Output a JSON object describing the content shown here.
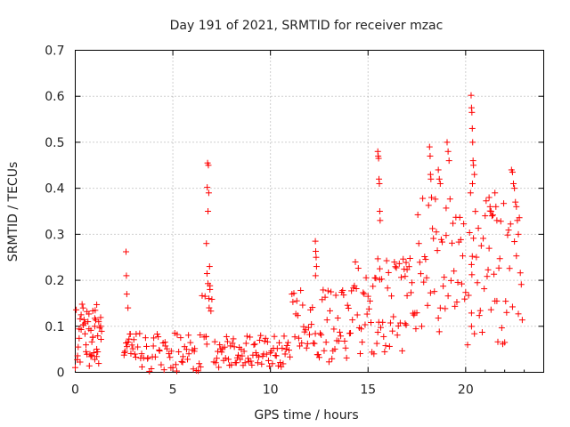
{
  "chart_data": {
    "type": "scatter",
    "title": "Day 191 of 2021, SRMTID for receiver mzac",
    "xlabel": "GPS time / hours",
    "ylabel": "SRMTID / TECUs",
    "xlim": [
      0,
      24
    ],
    "ylim": [
      0,
      0.7
    ],
    "xticks": [
      {
        "value": 0,
        "label": "0"
      },
      {
        "value": 5,
        "label": "5"
      },
      {
        "value": 10,
        "label": "10"
      },
      {
        "value": 15,
        "label": "15"
      },
      {
        "value": 20,
        "label": "20"
      }
    ],
    "yticks": [
      {
        "value": 0,
        "label": "0"
      },
      {
        "value": 0.1,
        "label": "0.1"
      },
      {
        "value": 0.2,
        "label": "0.2"
      },
      {
        "value": 0.3,
        "label": "0.3"
      },
      {
        "value": 0.4,
        "label": "0.4"
      },
      {
        "value": 0.5,
        "label": "0.5"
      },
      {
        "value": 0.6,
        "label": "0.6"
      },
      {
        "value": 0.7,
        "label": "0.7"
      }
    ],
    "grid": true,
    "marker": "+",
    "series": [
      {
        "name": "SRMTID",
        "color": "#ff0000",
        "x": [
          0.0,
          0.1,
          0.15,
          0.2,
          0.25,
          0.3,
          0.35,
          0.4,
          0.45,
          0.5,
          0.55,
          0.6,
          0.65,
          0.7,
          0.75,
          0.8,
          0.85,
          0.9,
          0.95,
          1.0,
          1.05,
          1.1,
          1.15,
          1.2,
          1.25,
          1.3,
          1.35,
          0.05,
          0.2,
          0.4,
          0.6,
          0.8,
          1.0,
          1.2,
          0.3,
          0.5,
          0.7,
          0.9,
          1.1,
          1.3,
          0.12,
          0.42,
          0.72,
          1.02,
          1.32,
          0.9,
          1.0,
          1.1,
          0.25,
          0.55,
          0.85,
          1.15,
          2.5,
          2.55,
          2.6,
          2.65,
          2.7,
          2.75,
          2.8,
          2.85,
          2.9,
          2.95,
          3.0,
          3.1,
          3.2,
          3.3,
          3.4,
          3.5,
          3.6,
          3.7,
          3.8,
          3.9,
          4.0,
          4.1,
          4.2,
          4.3,
          4.4,
          4.5,
          4.6,
          4.7,
          4.8,
          4.9,
          5.0,
          5.1,
          5.2,
          5.3,
          5.4,
          5.5,
          5.6,
          5.7,
          5.8,
          5.9,
          6.0,
          6.1,
          6.2,
          6.3,
          6.4,
          6.5,
          2.6,
          2.62,
          2.64,
          2.7,
          3.05,
          3.35,
          3.65,
          3.95,
          4.25,
          4.55,
          4.85,
          5.15,
          5.45,
          5.75,
          6.05,
          6.35,
          2.52,
          2.82,
          3.12,
          3.42,
          3.72,
          4.02,
          4.32,
          4.62,
          4.92,
          5.22,
          5.52,
          5.82,
          6.12,
          6.42,
          6.6,
          6.65,
          6.7,
          6.75,
          6.8,
          6.85,
          6.9,
          6.95,
          7.0,
          6.78,
          6.82,
          6.76,
          6.84,
          6.8,
          6.72,
          6.88,
          6.7,
          6.9,
          6.74,
          6.86,
          7.1,
          7.2,
          7.3,
          7.4,
          7.5,
          7.6,
          7.7,
          7.8,
          7.9,
          8.0,
          8.1,
          8.2,
          8.3,
          8.4,
          8.5,
          8.6,
          8.7,
          8.8,
          8.9,
          9.0,
          9.1,
          9.2,
          9.3,
          9.4,
          9.5,
          9.6,
          9.7,
          9.8,
          9.9,
          10.0,
          10.1,
          10.2,
          10.3,
          10.4,
          10.5,
          10.6,
          10.7,
          10.8,
          10.9,
          11.0,
          7.15,
          7.45,
          7.75,
          8.05,
          8.35,
          8.65,
          8.95,
          9.25,
          9.55,
          9.85,
          10.15,
          10.45,
          10.75,
          7.35,
          7.65,
          7.95,
          8.25,
          8.55,
          8.85,
          9.15,
          9.45,
          9.75,
          10.05,
          10.35,
          10.65,
          10.95,
          7.25,
          7.55,
          7.85,
          8.15,
          8.45,
          8.75,
          9.05,
          9.35,
          9.65,
          9.95,
          10.25,
          10.55,
          10.85,
          11.1,
          11.2,
          11.3,
          11.4,
          11.5,
          11.6,
          11.7,
          11.8,
          11.9,
          12.0,
          12.1,
          12.2,
          12.3,
          12.4,
          12.5,
          12.6,
          12.7,
          12.8,
          12.9,
          13.0,
          13.1,
          13.2,
          13.3,
          13.4,
          13.5,
          13.6,
          13.7,
          13.8,
          13.9,
          14.0,
          12.3,
          12.32,
          12.34,
          12.36,
          12.31,
          11.15,
          11.45,
          11.75,
          12.05,
          12.45,
          12.75,
          13.05,
          13.35,
          13.65,
          13.95,
          11.25,
          11.55,
          11.85,
          12.15,
          12.55,
          12.85,
          13.15,
          13.45,
          13.75,
          14.05,
          11.35,
          11.65,
          11.95,
          12.25,
          12.65,
          12.95,
          13.25,
          13.55,
          13.85,
          14.1,
          14.2,
          14.3,
          14.4,
          14.5,
          14.6,
          14.7,
          14.8,
          14.9,
          15.0,
          15.1,
          15.2,
          15.3,
          15.4,
          15.5,
          15.6,
          15.7,
          15.8,
          15.9,
          16.0,
          16.1,
          16.2,
          16.3,
          16.4,
          16.5,
          16.6,
          16.7,
          16.8,
          16.9,
          17.0,
          15.5,
          15.52,
          15.54,
          15.56,
          15.58,
          15.6,
          15.62,
          15.5,
          15.55,
          15.6,
          14.15,
          14.45,
          14.75,
          15.05,
          15.35,
          15.65,
          15.95,
          16.25,
          16.55,
          16.85,
          14.25,
          14.55,
          14.85,
          15.15,
          15.45,
          15.75,
          16.05,
          16.35,
          16.65,
          16.95,
          14.35,
          14.65,
          14.95,
          15.25,
          15.85,
          16.15,
          16.45,
          16.75,
          16.9,
          16.95,
          17.0,
          17.1,
          17.2,
          17.3,
          17.4,
          17.5,
          17.6,
          17.7,
          17.8,
          17.9,
          18.0,
          18.1,
          18.2,
          18.3,
          18.4,
          18.5,
          18.6,
          18.7,
          18.8,
          18.9,
          19.0,
          19.1,
          19.2,
          19.3,
          19.4,
          19.5,
          19.6,
          19.7,
          19.8,
          19.9,
          20.0,
          18.15,
          18.18,
          18.2,
          18.22,
          18.25,
          19.0,
          19.05,
          19.1,
          19.15,
          18.6,
          18.65,
          18.7,
          17.15,
          17.45,
          17.75,
          18.05,
          18.35,
          18.65,
          18.95,
          19.25,
          19.55,
          19.85,
          17.25,
          17.55,
          17.85,
          18.45,
          18.75,
          19.35,
          19.65,
          19.95,
          17.35,
          17.65,
          17.95,
          18.55,
          18.85,
          19.45,
          19.75,
          20.1,
          20.2,
          20.3,
          20.4,
          20.5,
          20.6,
          20.7,
          20.8,
          20.9,
          21.0,
          21.1,
          21.2,
          21.3,
          21.4,
          21.5,
          21.6,
          21.7,
          21.8,
          21.9,
          22.0,
          22.1,
          22.2,
          22.3,
          22.4,
          22.5,
          22.6,
          22.7,
          22.8,
          22.9,
          20.28,
          20.3,
          20.32,
          20.34,
          20.36,
          20.38,
          20.3,
          20.32,
          20.34,
          20.3,
          20.4,
          20.45,
          20.35,
          20.25,
          21.2,
          21.25,
          21.3,
          21.35,
          21.5,
          21.55,
          21.6,
          22.35,
          22.4,
          22.45,
          22.5,
          22.55,
          22.6,
          22.65,
          22.7,
          22.75,
          20.15,
          20.45,
          20.75,
          21.05,
          21.45,
          21.75,
          22.05,
          22.25,
          20.55,
          20.85,
          21.15,
          21.65,
          21.85,
          22.15,
          22.85,
          20.65,
          20.95,
          21.25,
          21.95
        ]
      }
    ]
  }
}
